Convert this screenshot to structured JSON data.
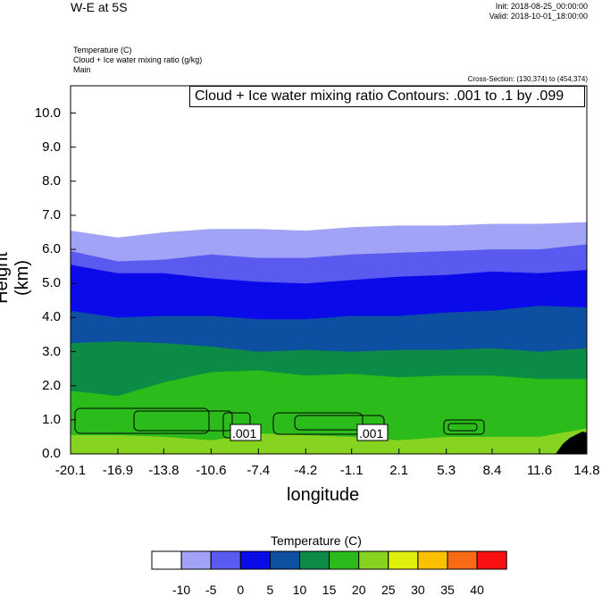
{
  "header": {
    "title": "W-E at 5S",
    "init": "Init: 2018-08-25_00:00:00",
    "valid": "Valid: 2018-10-01_18:00:00",
    "field1": "Temperature   (C)",
    "field2": "Cloud + Ice water mixing ratio   (g/kg)",
    "field3": "Main",
    "cross_section": "Cross-Section: (130,374) to (454,374)",
    "contour_info": "Cloud + Ice water mixing ratio Contours: .001 to .1 by .099"
  },
  "chart_data": {
    "type": "heatmap",
    "xlabel": "longitude",
    "ylabel": "Height (km)",
    "xlim": [
      -20.1,
      14.8
    ],
    "ylim": [
      0.0,
      10.8
    ],
    "x_ticks": [
      "-20.1",
      "-16.9",
      "-13.8",
      "-10.6",
      "-7.4",
      "-4.2",
      "-1.1",
      "2.1",
      "5.3",
      "8.4",
      "11.6",
      "14.8"
    ],
    "y_ticks": [
      "0.0",
      "1.0",
      "2.0",
      "3.0",
      "4.0",
      "5.0",
      "6.0",
      "7.0",
      "8.0",
      "9.0",
      "10.0"
    ],
    "legend_title": "Temperature  (C)",
    "legend_labels": [
      "-10",
      "-5",
      "0",
      "5",
      "10",
      "15",
      "20",
      "25",
      "30",
      "35",
      "40"
    ],
    "legend_colors": [
      "#ffffff",
      "#a0a3f6",
      "#5a5af0",
      "#0b0bea",
      "#0d4fa0",
      "#0b8b45",
      "#2bbb1a",
      "#86d420",
      "#dfee0a",
      "#f9c100",
      "#f86a14",
      "#f80f0f"
    ],
    "contour_labels": [
      ".001",
      ".001"
    ],
    "isotherm_heights_km": {
      "x": [
        -20.1,
        -16.9,
        -13.8,
        -10.6,
        -7.4,
        -4.2,
        -1.1,
        2.1,
        5.3,
        8.4,
        11.6,
        14.8
      ],
      "-10": [
        6.55,
        6.35,
        6.5,
        6.6,
        6.6,
        6.55,
        6.65,
        6.7,
        6.7,
        6.75,
        6.75,
        6.8
      ],
      "-5": [
        5.95,
        5.65,
        5.7,
        5.85,
        5.75,
        5.75,
        5.85,
        5.9,
        5.95,
        6.0,
        6.0,
        6.15
      ],
      "0": [
        5.55,
        5.3,
        5.3,
        5.15,
        5.05,
        5.0,
        5.1,
        5.2,
        5.25,
        5.35,
        5.3,
        5.4
      ],
      "5": [
        4.2,
        4.0,
        4.05,
        4.05,
        3.95,
        3.95,
        4.05,
        4.05,
        4.15,
        4.2,
        4.35,
        4.3
      ],
      "10": [
        3.25,
        3.3,
        3.25,
        3.15,
        3.0,
        3.05,
        3.0,
        3.05,
        3.05,
        3.1,
        3.0,
        3.1
      ],
      "15": [
        1.85,
        1.7,
        2.1,
        2.4,
        2.45,
        2.3,
        2.35,
        2.25,
        2.3,
        2.3,
        2.2,
        2.2
      ],
      "20": [
        0.55,
        0.55,
        0.5,
        0.4,
        0.6,
        0.55,
        0.5,
        0.4,
        0.5,
        0.5,
        0.5,
        0.75
      ]
    }
  }
}
